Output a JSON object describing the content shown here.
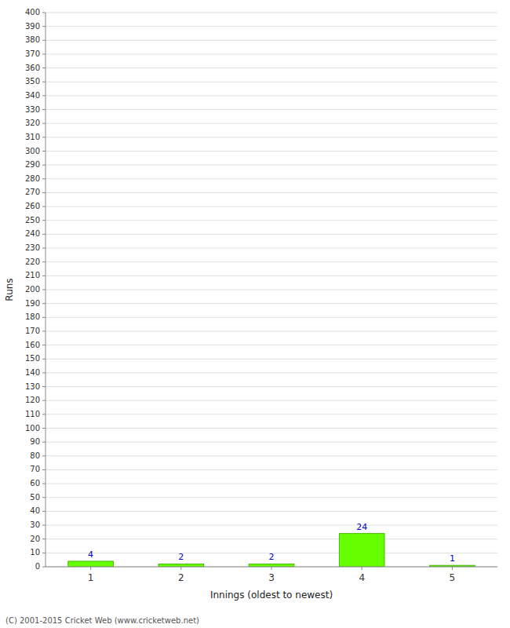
{
  "chart_data": {
    "type": "bar",
    "xlabel": "Innings (oldest to newest)",
    "ylabel": "Runs",
    "categories": [
      1,
      2,
      3,
      4,
      5
    ],
    "values": [
      4,
      2,
      2,
      24,
      1
    ],
    "color": "#66ff00",
    "ylim": [
      0,
      400
    ],
    "yticks": [
      0,
      10,
      20,
      30,
      40,
      50,
      60,
      70,
      80,
      90,
      100,
      110,
      120,
      130,
      140,
      150,
      160,
      170,
      180,
      190,
      200,
      210,
      220,
      230,
      240,
      250,
      260,
      270,
      280,
      290,
      300,
      310,
      320,
      330,
      340,
      350,
      360,
      370,
      380,
      390,
      400
    ],
    "grid": true,
    "data_labels": true,
    "annotations": [
      "(C) 2001-2015 Cricket Web (www.cricketweb.net)"
    ]
  }
}
